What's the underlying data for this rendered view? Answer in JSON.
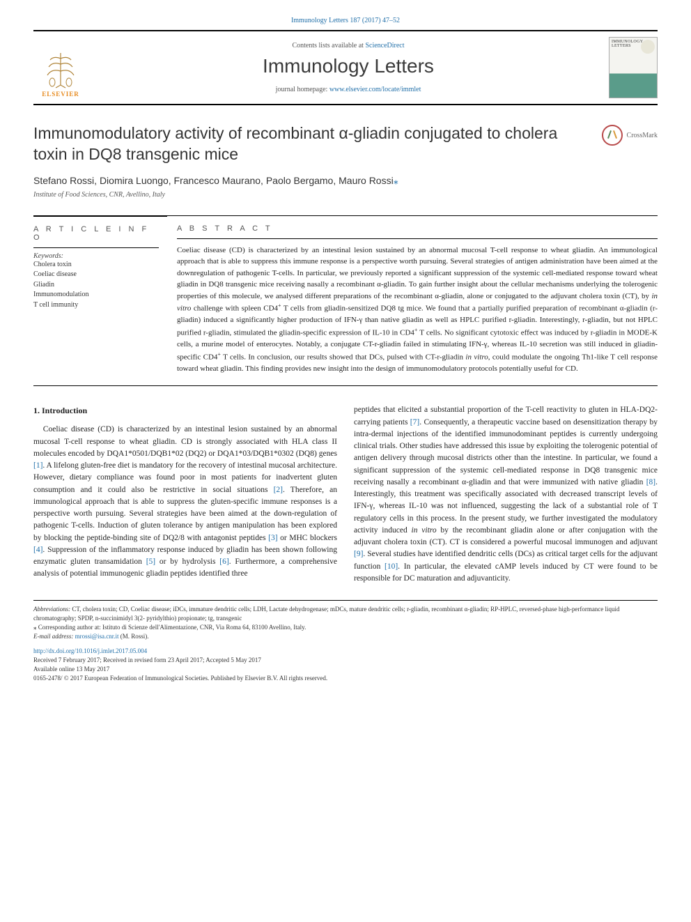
{
  "top_citation": "Immunology Letters 187 (2017) 47–52",
  "header": {
    "contents_prefix": "Contents lists available at ",
    "contents_link": "ScienceDirect",
    "journal_title": "Immunology Letters",
    "homepage_prefix": "journal homepage: ",
    "homepage_link": "www.elsevier.com/locate/immlet",
    "elsevier_label": "ELSEVIER",
    "cover_label": "IMMUNOLOGY LETTERS"
  },
  "article": {
    "title": "Immunomodulatory activity of recombinant α-gliadin conjugated to cholera toxin in DQ8 transgenic mice",
    "crossmark": "CrossMark",
    "authors": "Stefano Rossi, Diomira Luongo, Francesco Maurano, Paolo Bergamo, Mauro Rossi",
    "corr_marker": "⁎",
    "affiliation": "Institute of Food Sciences, CNR, Avellino, Italy"
  },
  "info": {
    "heading": "A R T I C L E   I N F O",
    "keywords_label": "Keywords:",
    "keywords": "Cholera toxin\nCoeliac disease\nGliadin\nImmunomodulation\nT cell immunity"
  },
  "abstract": {
    "heading": "A B S T R A C T",
    "text": "Coeliac disease (CD) is characterized by an intestinal lesion sustained by an abnormal mucosal T-cell response to wheat gliadin. An immunological approach that is able to suppress this immune response is a perspective worth pursuing. Several strategies of antigen administration have been aimed at the downregulation of pathogenic T-cells. In particular, we previously reported a significant suppression of the systemic cell-mediated response toward wheat gliadin in DQ8 transgenic mice receiving nasally a recombinant α-gliadin. To gain further insight about the cellular mechanisms underlying the tolerogenic properties of this molecule, we analysed different preparations of the recombinant α-gliadin, alone or conjugated to the adjuvant cholera toxin (CT), by in vitro challenge with spleen CD4⁺ T cells from gliadin-sensitized DQ8 tg mice. We found that a partially purified preparation of recombinant α-gliadin (r-gliadin) induced a significantly higher production of IFN-γ than native gliadin as well as HPLC purified r-gliadin. Interestingly, r-gliadin, but not HPLC purified r-gliadin, stimulated the gliadin-specific expression of IL-10 in CD4⁺ T cells. No significant cytotoxic effect was induced by r-gliadin in MODE-K cells, a murine model of enterocytes. Notably, a conjugate CT-r-gliadin failed in stimulating IFN-γ, whereas IL-10 secretion was still induced in gliadin-specific CD4⁺ T cells. In conclusion, our results showed that DCs, pulsed with CT-r-gliadin in vitro, could modulate the ongoing Th1-like T cell response toward wheat gliadin. This finding provides new insight into the design of immunomodulatory protocols potentially useful for CD."
  },
  "body": {
    "section_heading": "1. Introduction",
    "col1": "Coeliac disease (CD) is characterized by an intestinal lesion sustained by an abnormal mucosal T-cell response to wheat gliadin. CD is strongly associated with HLA class II molecules encoded by DQA1*0501/DQB1*02 (DQ2) or DQA1*03/DQB1*0302 (DQ8) genes [1]. A lifelong gluten-free diet is mandatory for the recovery of intestinal mucosal architecture. However, dietary compliance was found poor in most patients for inadvertent gluten consumption and it could also be restrictive in social situations [2]. Therefore, an immunological approach that is able to suppress the gluten-specific immune responses is a perspective worth pursuing. Several strategies have been aimed at the down-regulation of pathogenic T-cells. Induction of gluten tolerance by antigen manipulation has been explored by blocking the peptide-binding site of DQ2/8 with antagonist peptides [3] or MHC blockers [4]. Suppression of the inflammatory response induced by gliadin has been shown following enzymatic gluten transamidation [5] or by hydrolysis [6]. Furthermore, a comprehensive analysis of potential immunogenic gliadin peptides identified three",
    "col2": "peptides that elicited a substantial proportion of the T-cell reactivity to gluten in HLA-DQ2-carrying patients [7]. Consequently, a therapeutic vaccine based on desensitization therapy by intra-dermal injections of the identified immunodominant peptides is currently undergoing clinical trials. Other studies have addressed this issue by exploiting the tolerogenic potential of antigen delivery through mucosal districts other than the intestine. In particular, we found a significant suppression of the systemic cell-mediated response in DQ8 transgenic mice receiving nasally a recombinant α-gliadin and that were immunized with native gliadin [8]. Interestingly, this treatment was specifically associated with decreased transcript levels of IFN-γ, whereas IL-10 was not influenced, suggesting the lack of a substantial role of T regulatory cells in this process. In the present study, we further investigated the modulatory activity induced in vitro by the recombinant gliadin alone or after conjugation with the adjuvant cholera toxin (CT). CT is considered a powerful mucosal immunogen and adjuvant [9]. Several studies have identified dendritic cells (DCs) as critical target cells for the adjuvant function [10]. In particular, the elevated cAMP levels induced by CT were found to be responsible for DC maturation and adjuvanticity."
  },
  "footer": {
    "abbrev_label": "Abbreviations:",
    "abbrev": " CT, cholera toxin; CD, Coeliac disease; iDCs, immature dendritic cells; LDH, Lactate dehydrogenase; mDCs, mature dendritic cells; r-gliadin, recombinant α-gliadin; RP-HPLC, reversed-phase high-performance liquid chromatography; SPDP, n-succinimidyl 3(2- pyridylthio) propionate; tg, transgenic",
    "corr_label": "⁎ Corresponding author at: Istituto di Scienze dell'Alimentazione, CNR, Via Roma 64, 83100 Avellino, Italy.",
    "email_label": "E-mail address: ",
    "email": "mrossi@isa.cnr.it",
    "email_suffix": " (M. Rossi).",
    "doi": "http://dx.doi.org/10.1016/j.imlet.2017.05.004",
    "received": "Received 7 February 2017; Received in revised form 23 April 2017; Accepted 5 May 2017",
    "online": "Available online 13 May 2017",
    "copyright": "0165-2478/ © 2017 European Federation of Immunological Societies. Published by Elsevier B.V. All rights reserved."
  },
  "colors": {
    "link": "#1f6ea8",
    "elsevier_orange": "#e78a1e",
    "text": "#222222",
    "border": "#000000"
  }
}
